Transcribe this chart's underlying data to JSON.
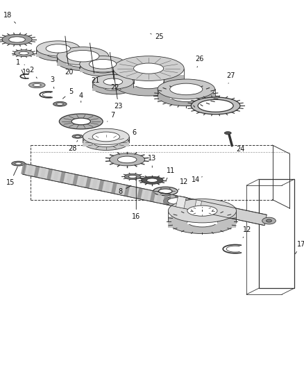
{
  "bg_color": "#ffffff",
  "line_color": "#1a1a1a",
  "gray_dark": "#333333",
  "gray_mid": "#888888",
  "gray_light": "#cccccc",
  "gray_fill": "#b0b0b0",
  "white": "#ffffff",
  "figsize": [
    4.38,
    5.33
  ],
  "dpi": 100
}
